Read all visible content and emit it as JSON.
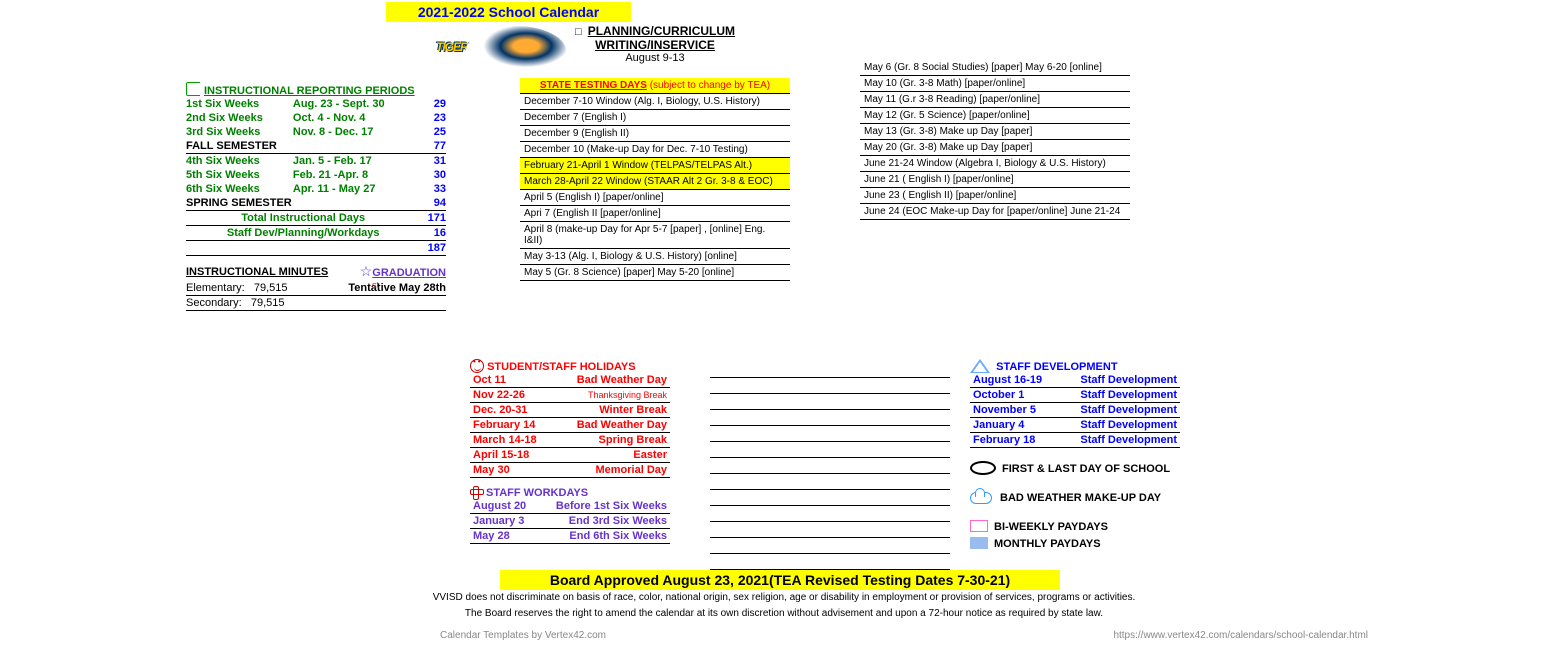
{
  "title": "2021-2022 School Calendar",
  "rp_header": "INSTRUCTIONAL REPORTING PERIODS",
  "rp": [
    {
      "label": "1st Six Weeks",
      "dates": "Aug. 23 - Sept. 30",
      "days": "29"
    },
    {
      "label": "2nd Six Weeks",
      "dates": "Oct. 4 - Nov. 4",
      "days": "23"
    },
    {
      "label": "3rd Six Weeks",
      "dates": "Nov. 8 - Dec. 17",
      "days": "25"
    }
  ],
  "fall_sem": {
    "label": "FALL SEMESTER",
    "days": "77"
  },
  "rp2": [
    {
      "label": "4th Six Weeks",
      "dates": "Jan. 5 - Feb. 17",
      "days": "31"
    },
    {
      "label": "5th Six Weeks",
      "dates": "Feb. 21 -Apr. 8",
      "days": "30"
    },
    {
      "label": "6th Six Weeks",
      "dates": "Apr. 11 - May 27",
      "days": "33"
    }
  ],
  "spring_sem": {
    "label": "SPRING SEMESTER",
    "days": "94"
  },
  "totals": [
    {
      "label": "Total Instructional Days",
      "days": "171"
    },
    {
      "label": "Staff Dev/Planning/Workdays",
      "days": "16"
    },
    {
      "label": "",
      "days": "187"
    }
  ],
  "mins_head": "INSTRUCTIONAL MINUTES",
  "mins": [
    {
      "label": "Elementary:",
      "val": "79,515"
    },
    {
      "label": "Secondary:",
      "val": "79,515"
    }
  ],
  "grad_head": "GRADUATION",
  "grad_sub": "Tentative May 28th",
  "plan_head": "PLANNING/CURRICULUM WRITING/INSERVICE",
  "plan_dates": "August 9-13",
  "test_head": "STATE TESTING DAYS",
  "test_note": "(subject to change by TEA)",
  "tests": [
    {
      "t": "December 7-10 Window (Alg. I, Biology, U.S. History)"
    },
    {
      "t": "December 7 (English I)"
    },
    {
      "t": "December 9 (English II)"
    },
    {
      "t": "December 10 (Make-up Day for Dec. 7-10 Testing)"
    },
    {
      "t": "February 21-April 1 Window (TELPAS/TELPAS Alt.)",
      "hl": 1
    },
    {
      "t": "March 28-April 22 Window (STAAR Alt 2 Gr. 3-8 & EOC)",
      "hl": 1
    },
    {
      "t": "April 5 (English I) [paper/online]"
    },
    {
      "t": "Apri 7 (English II  [paper/online]"
    },
    {
      "t": "April 8 (make-up Day for Apr 5-7 [paper] , [online] Eng. I&II)"
    },
    {
      "t": "May 3-13 (Alg. I, Biology & U.S. History) [online]"
    },
    {
      "t": "May 5 (Gr. 8 Science) [paper] May 5-20 [online]"
    }
  ],
  "tests2": [
    {
      "t": "May 6 (Gr. 8 Social Studies) [paper] May 6-20 [online]"
    },
    {
      "t": "May 10 (Gr. 3-8 Math)  [paper/online]"
    },
    {
      "t": "May 11 (G.r 3-8 Reading) [paper/online]"
    },
    {
      "t": "May 12  (Gr. 5 Science) [paper/online]"
    },
    {
      "t": "May 13 (Gr. 3-8) Make up Day [paper]"
    },
    {
      "t": "May 20 (Gr. 3-8) Make up Day [paper]"
    },
    {
      "t": "June 21-24 Window (Algebra I, Biology & U.S. History)"
    },
    {
      "t": "June 21 ( English I) [paper/online]"
    },
    {
      "t": "June 23 ( English II) [paper/online]"
    },
    {
      "t": "June 24 (EOC Make-up Day for [paper/online] June 21-24"
    }
  ],
  "hol_head": "STUDENT/STAFF HOLIDAYS",
  "hols": [
    {
      "d": "Oct 11",
      "n": "Bad Weather Day"
    },
    {
      "d": "Nov 22-26",
      "n": "Thanksgiving Break",
      "sm": 1
    },
    {
      "d": "Dec. 20-31",
      "n": "Winter Break"
    },
    {
      "d": "February 14",
      "n": "Bad Weather Day"
    },
    {
      "d": "March 14-18",
      "n": "Spring Break"
    },
    {
      "d": "April 15-18",
      "n": "Easter"
    },
    {
      "d": "May 30",
      "n": "Memorial Day"
    }
  ],
  "work_head": "STAFF WORKDAYS",
  "works": [
    {
      "d": "August 20",
      "n": "Before 1st Six Weeks"
    },
    {
      "d": "January 3",
      "n": "End 3rd Six Weeks"
    },
    {
      "d": "May 28",
      "n": "End 6th Six Weeks"
    }
  ],
  "dev_head": "STAFF DEVELOPMENT",
  "devs": [
    {
      "d": "August 16-19",
      "n": "Staff Development"
    },
    {
      "d": "October 1",
      "n": "Staff Development"
    },
    {
      "d": "November 5",
      "n": "Staff Development"
    },
    {
      "d": "January 4",
      "n": "Staff Development"
    },
    {
      "d": "February 18",
      "n": "Staff Development"
    }
  ],
  "key1": "FIRST & LAST DAY OF SCHOOL",
  "key2": "BAD WEATHER MAKE-UP DAY",
  "key3": "BI-WEEKLY PAYDAYS",
  "key4": "MONTHLY PAYDAYS",
  "board": "Board Approved August 23, 2021(TEA Revised Testing Dates 7-30-21)",
  "disc1": "VVISD does not discriminate on basis of race, color, national origin, sex religion, age or disability in employment or provision of services, programs or activities.",
  "disc2": "The Board reserves the right to amend the calendar at its own discretion without advisement and upon a 72-hour notice as required by state law.",
  "tmpl": "Calendar Templates by Vertex42.com",
  "url": "https://www.vertex42.com/calendars/school-calendar.html",
  "st": "st"
}
